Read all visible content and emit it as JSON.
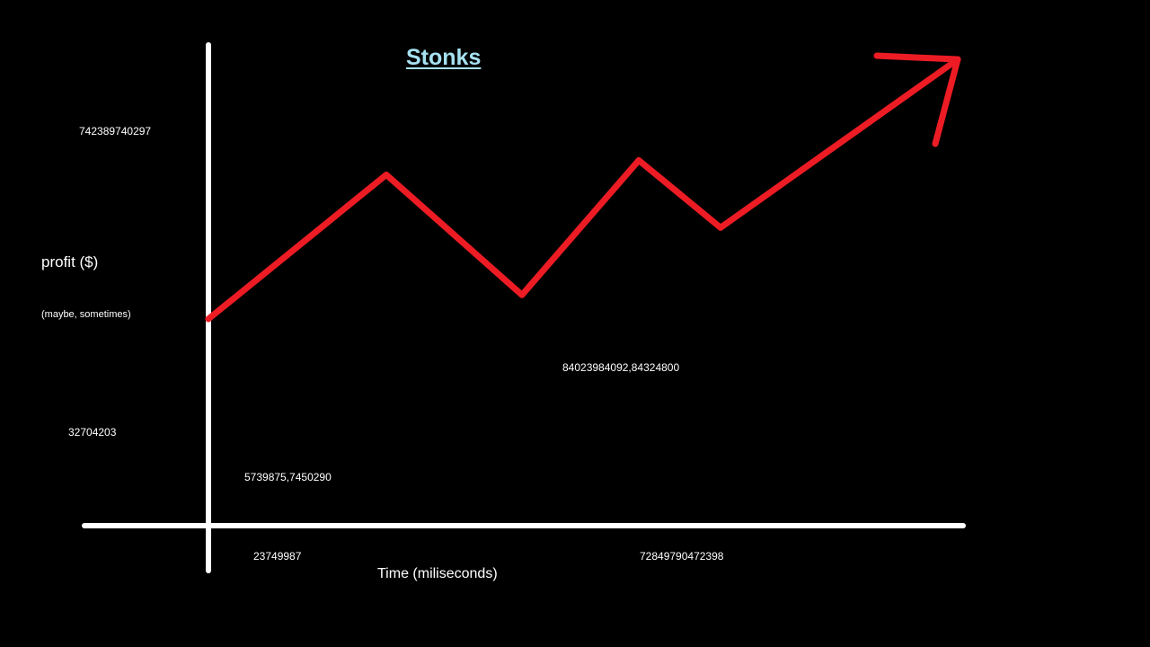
{
  "colors": {
    "background": "#000000",
    "axes": "#ffffff",
    "line": "#ed1c24",
    "title": "#a6e1f0",
    "text": "#ffffff"
  },
  "chart_data": {
    "type": "line",
    "title": "Stonks",
    "ylabel": "profit ($)",
    "ylabel_note": "(maybe, sometimes)",
    "xlabel": "Time (miliseconds)",
    "y_tick_labels": [
      "742389740297",
      "32704203"
    ],
    "x_tick_labels": [
      "23749987",
      "72849790472398"
    ],
    "annotations": [
      "5739875,7450290",
      "84023984092,84324800"
    ],
    "series": [
      {
        "values": [
          0.43,
          0.73,
          0.48,
          0.76,
          0.62,
          0.97
        ]
      }
    ],
    "ends_with_arrow": true,
    "grid": false,
    "legend": "none"
  }
}
